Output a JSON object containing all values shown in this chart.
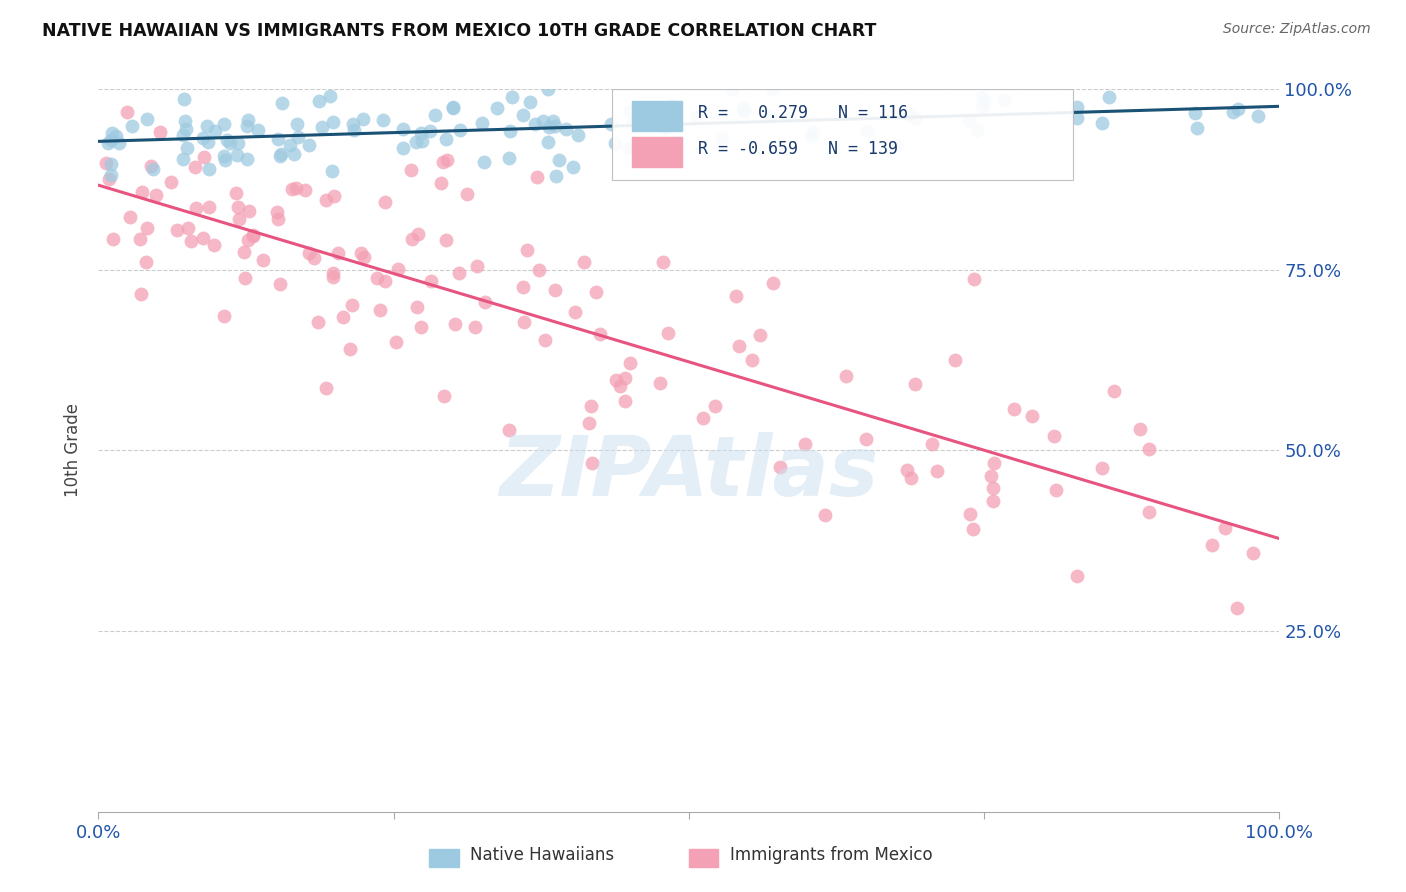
{
  "title": "NATIVE HAWAIIAN VS IMMIGRANTS FROM MEXICO 10TH GRADE CORRELATION CHART",
  "source": "Source: ZipAtlas.com",
  "ylabel": "10th Grade",
  "xmin": 0.0,
  "xmax": 1.0,
  "ymin": 0.0,
  "ymax": 1.0,
  "r_native": 0.279,
  "n_native": 116,
  "r_mexico": -0.659,
  "n_mexico": 139,
  "native_color": "#9ecae1",
  "mexico_color": "#f4a0b5",
  "trendline_native_color": "#1a5276",
  "trendline_mexico_color": "#e75480",
  "background_color": "#ffffff",
  "ytick_vals": [
    0.25,
    0.5,
    0.75,
    1.0
  ],
  "ytick_labels": [
    "25.0%",
    "50.0%",
    "75.0%",
    "100.0%"
  ],
  "xtick_vals": [
    0.0,
    0.25,
    0.5,
    0.75,
    1.0
  ],
  "xtick_labels": [
    "0.0%",
    "",
    "",
    "",
    "100.0%"
  ],
  "legend_r_native": "R =   0.279   N = 116",
  "legend_r_mexico": "R = -0.659   N = 139",
  "watermark": "ZIPAtlas",
  "bottom_legend_native": "Native Hawaiians",
  "bottom_legend_mexico": "Immigrants from Mexico"
}
